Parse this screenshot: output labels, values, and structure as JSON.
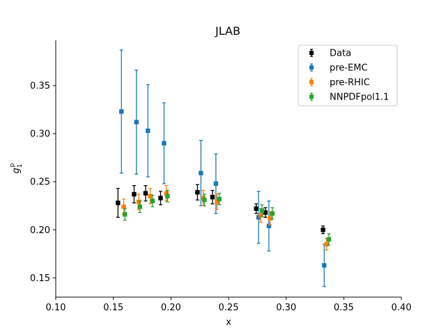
{
  "chart_data": {
    "type": "scatter",
    "title": "JLAB",
    "xlabel": "x",
    "ylabel_main": "g",
    "ylabel_sub": "1",
    "ylabel_sup": "p",
    "xlim": [
      0.1,
      0.4
    ],
    "ylim": [
      0.13,
      0.397
    ],
    "xticks": [
      0.1,
      0.15,
      0.2,
      0.25,
      0.3,
      0.35,
      0.4
    ],
    "xtick_labels": [
      "0.10",
      "0.15",
      "0.20",
      "0.25",
      "0.30",
      "0.35",
      "0.40"
    ],
    "yticks": [
      0.15,
      0.2,
      0.25,
      0.3,
      0.35
    ],
    "ytick_labels": [
      "0.15",
      "0.20",
      "0.25",
      "0.30",
      "0.35"
    ],
    "legend_position": "top-right",
    "series": [
      {
        "name": "Data",
        "color": "#000000",
        "x": [
          0.154,
          0.168,
          0.178,
          0.191,
          0.223,
          0.236,
          0.274,
          0.282,
          0.332
        ],
        "y": [
          0.228,
          0.237,
          0.238,
          0.233,
          0.239,
          0.234,
          0.222,
          0.218,
          0.2
        ],
        "err": [
          0.015,
          0.009,
          0.008,
          0.007,
          0.008,
          0.007,
          0.005,
          0.005,
          0.004
        ]
      },
      {
        "name": "pre-EMC",
        "color": "#1f77b4",
        "x": [
          0.157,
          0.17,
          0.18,
          0.194,
          0.226,
          0.239,
          0.276,
          0.285,
          0.333
        ],
        "y": [
          0.323,
          0.312,
          0.303,
          0.29,
          0.259,
          0.248,
          0.213,
          0.204,
          0.163
        ],
        "err": [
          0.064,
          0.054,
          0.048,
          0.042,
          0.034,
          0.031,
          0.027,
          0.026,
          0.022
        ]
      },
      {
        "name": "pre-RHIC",
        "color": "#ff7f0e",
        "x": [
          0.159,
          0.172,
          0.182,
          0.196,
          0.228,
          0.24,
          0.278,
          0.286,
          0.335
        ],
        "y": [
          0.224,
          0.229,
          0.235,
          0.238,
          0.233,
          0.229,
          0.215,
          0.212,
          0.185
        ],
        "err": [
          0.008,
          0.008,
          0.008,
          0.008,
          0.008,
          0.008,
          0.007,
          0.007,
          0.006
        ]
      },
      {
        "name": "NNPDFpol1.1",
        "color": "#2ca02c",
        "x": [
          0.16,
          0.173,
          0.184,
          0.197,
          0.229,
          0.242,
          0.279,
          0.288,
          0.337
        ],
        "y": [
          0.216,
          0.224,
          0.23,
          0.235,
          0.231,
          0.232,
          0.22,
          0.217,
          0.19
        ],
        "err": [
          0.006,
          0.006,
          0.006,
          0.006,
          0.006,
          0.006,
          0.006,
          0.006,
          0.006
        ]
      }
    ]
  }
}
